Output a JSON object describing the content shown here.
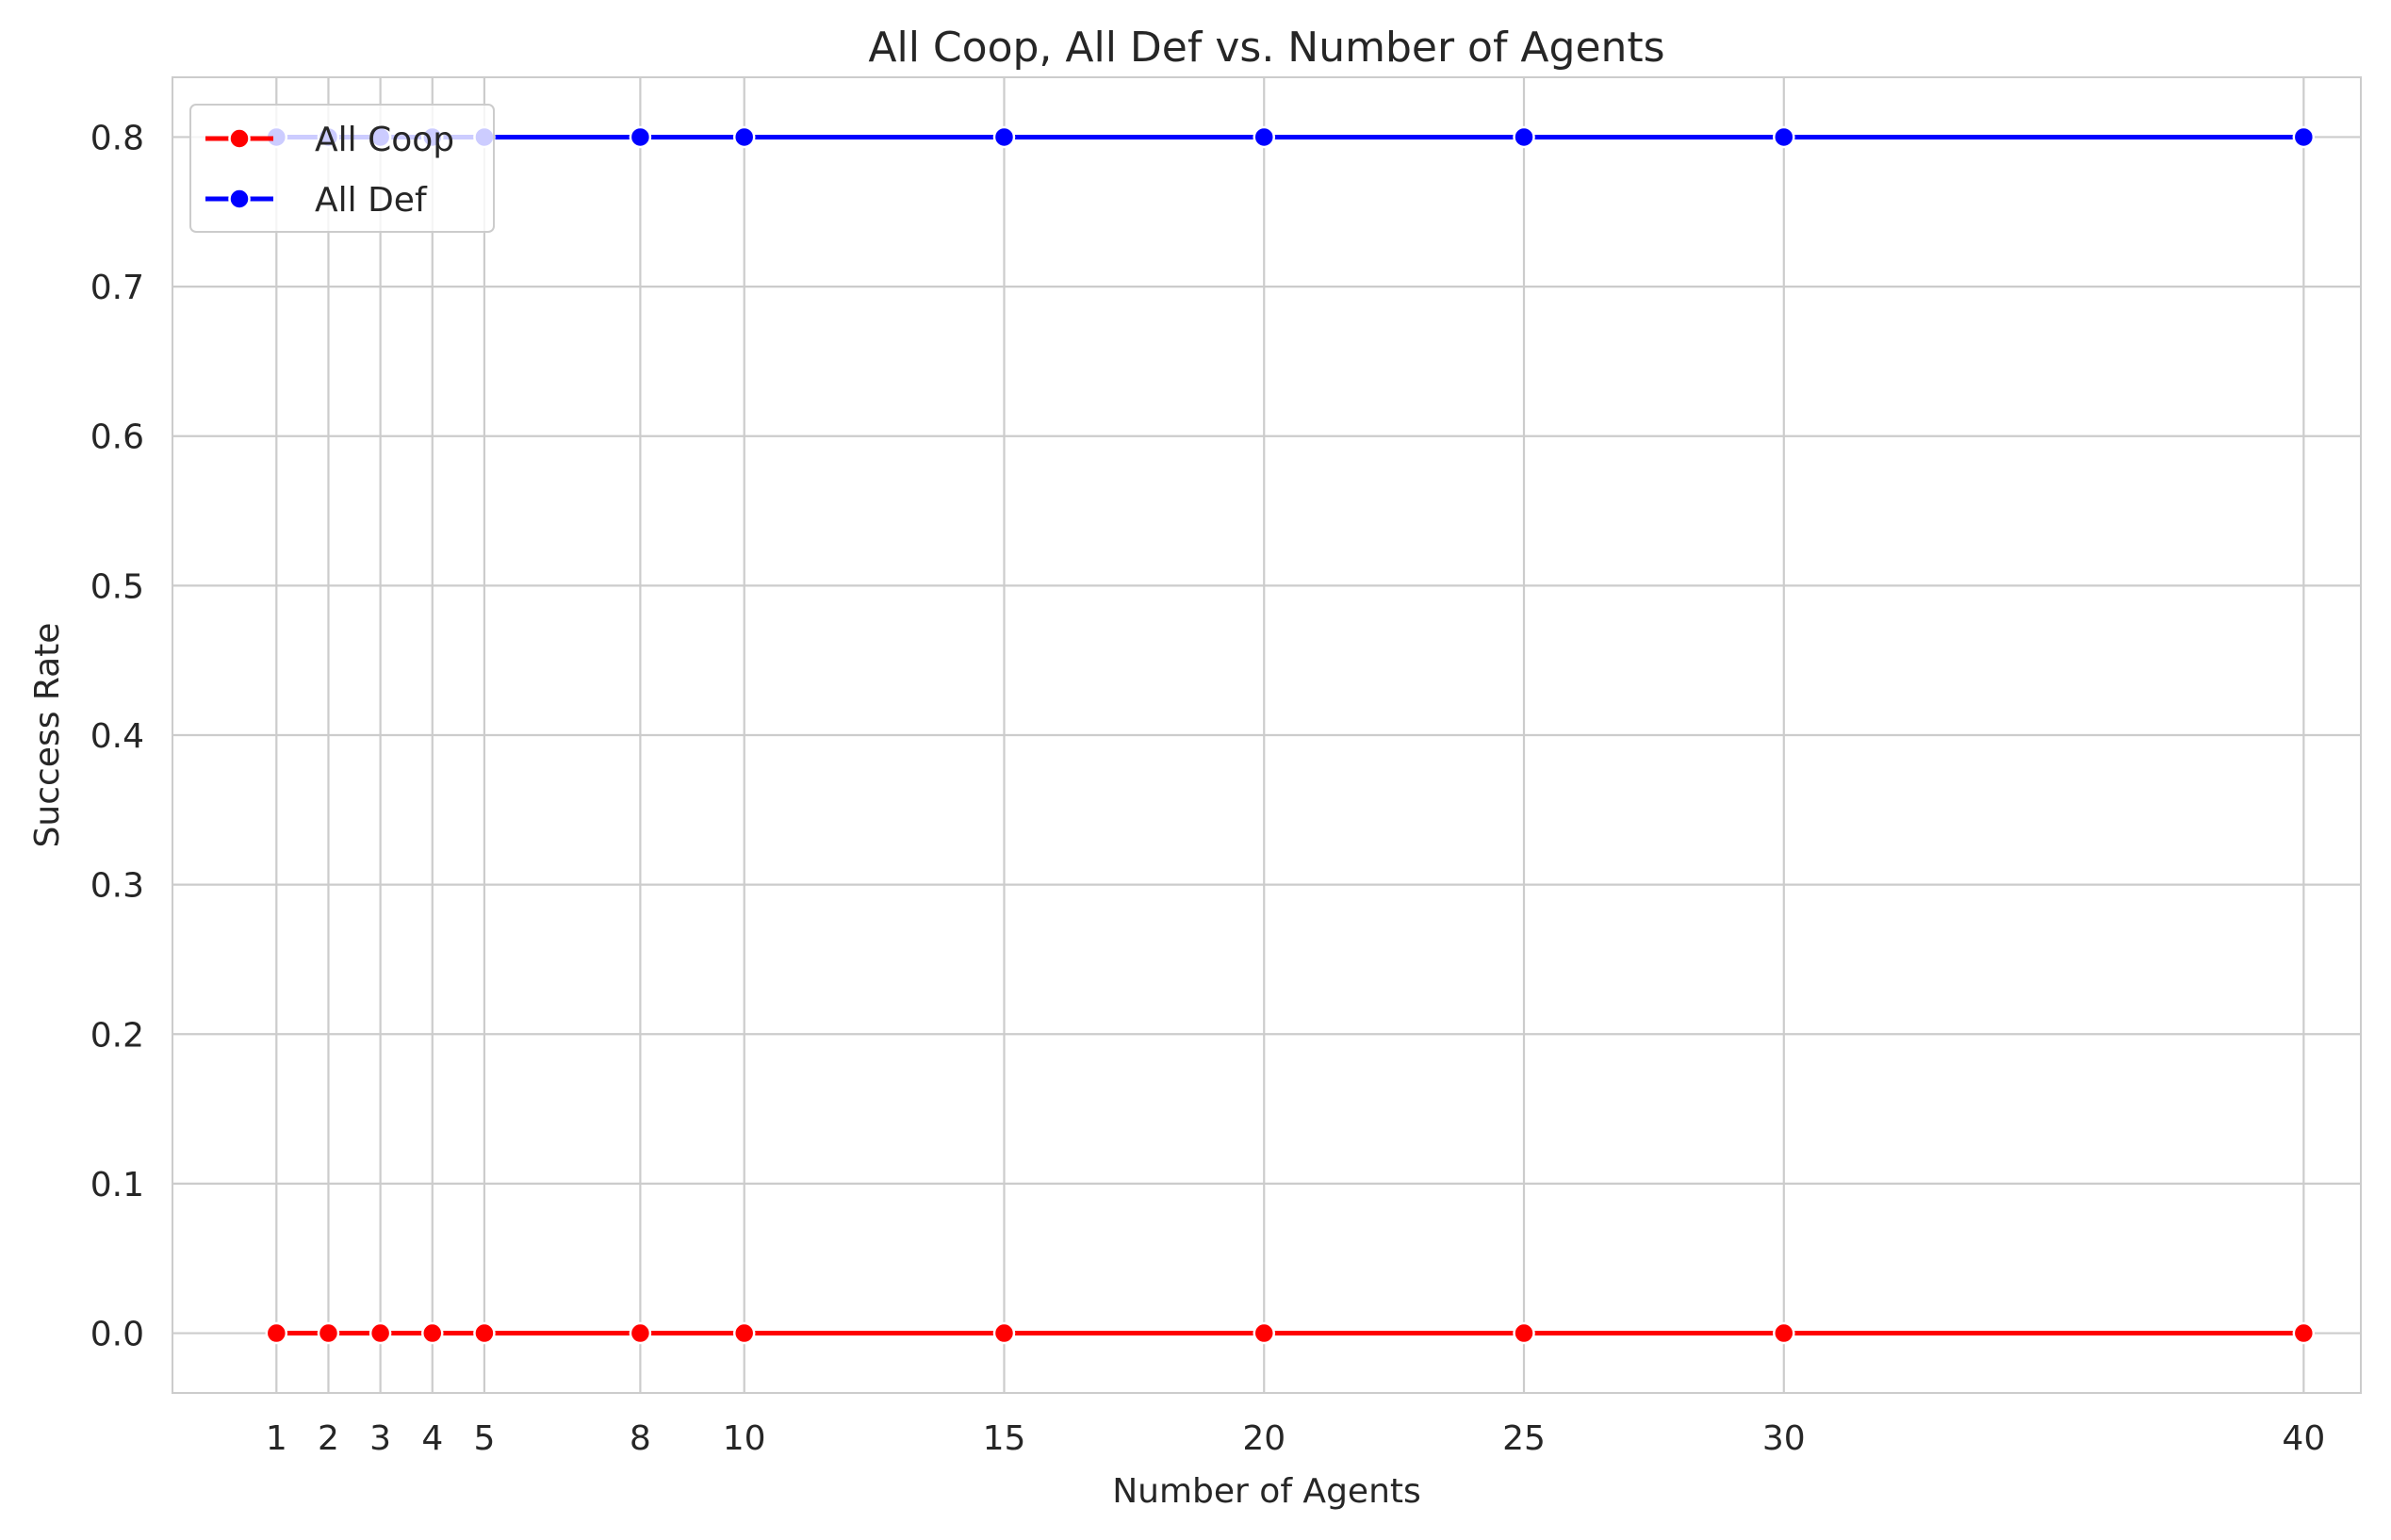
{
  "chart_data": {
    "type": "line",
    "title": "All Coop, All Def vs. Number of Agents",
    "xlabel": "Number of Agents",
    "ylabel": "Success Rate",
    "x": [
      1,
      2,
      3,
      4,
      5,
      8,
      10,
      15,
      20,
      25,
      30,
      40
    ],
    "x_tick_labels": [
      "1",
      "2",
      "3",
      "4",
      "5",
      "8",
      "10",
      "15",
      "20",
      "25",
      "30",
      "40"
    ],
    "xlim": [
      -1,
      41.1
    ],
    "ylim": [
      -0.04,
      0.84
    ],
    "y_ticks": [
      0.0,
      0.1,
      0.2,
      0.3,
      0.4,
      0.5,
      0.6,
      0.7,
      0.8
    ],
    "y_tick_labels": [
      "0.0",
      "0.1",
      "0.2",
      "0.3",
      "0.4",
      "0.5",
      "0.6",
      "0.7",
      "0.8"
    ],
    "grid": true,
    "legend_position": "upper-left",
    "series": [
      {
        "name": "All Coop",
        "color": "#ff0000",
        "values": [
          0,
          0,
          0,
          0,
          0,
          0,
          0,
          0,
          0,
          0,
          0,
          0
        ]
      },
      {
        "name": "All Def",
        "color": "#0000ff",
        "values": [
          0.8,
          0.8,
          0.8,
          0.8,
          0.8,
          0.8,
          0.8,
          0.8,
          0.8,
          0.8,
          0.8,
          0.8
        ]
      }
    ]
  }
}
